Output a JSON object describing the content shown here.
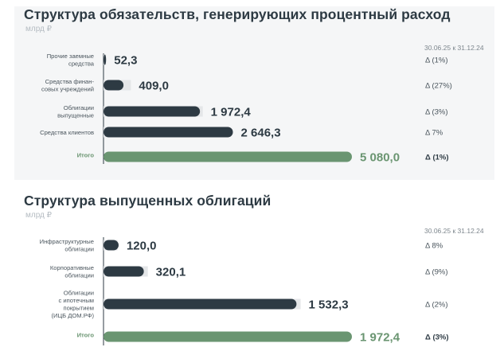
{
  "chart_data": [
    {
      "type": "bar",
      "title": "Структура обязательств, генерирующих процентный расход",
      "unit": "млрд ₽",
      "period_label": "30.06.25 к 31.12.24",
      "categories": [
        [
          "Прочие заемные",
          "средства"
        ],
        [
          "Средства финан-",
          "совых учреждений"
        ],
        [
          "Облигации",
          "выпущенные"
        ],
        [
          "Средства клиентов"
        ]
      ],
      "values": [
        52.3,
        409.0,
        1972.4,
        2646.3
      ],
      "value_labels": [
        "52,3",
        "409,0",
        "1 972,4",
        "2 646,3"
      ],
      "prior_values": [
        53,
        560,
        2030,
        2470
      ],
      "deltas": [
        "Δ (1%)",
        "Δ (27%)",
        "Δ (3%)",
        "Δ 7%"
      ],
      "total": {
        "label": "Итого",
        "value": 5080.0,
        "value_label": "5 080,0",
        "delta": "Δ (1%)"
      },
      "colors": {
        "bar": "#2d3a43",
        "prior": "#e4e6e8",
        "total": "#6a9571"
      }
    },
    {
      "type": "bar",
      "title": "Структура выпущенных облигаций",
      "unit": "млрд ₽",
      "period_label": "30.06.25 к 31.12.24",
      "categories": [
        [
          "Инфраструктурные",
          "облигации"
        ],
        [
          "Корпоративные",
          "облигации"
        ],
        [
          "Облигации",
          "с ипотечным",
          "покрытием",
          "(ИЦБ ДОМ.РФ)"
        ]
      ],
      "values": [
        120.0,
        320.1,
        1532.3
      ],
      "value_labels": [
        "120,0",
        "320,1",
        "1 532,3"
      ],
      "prior_values": [
        111,
        352,
        1565
      ],
      "deltas": [
        "Δ 8%",
        "Δ (9%)",
        "Δ (2%)"
      ],
      "total": {
        "label": "Итого",
        "value": 1972.4,
        "value_label": "1 972,4",
        "delta": "Δ (3%)"
      },
      "colors": {
        "bar": "#2d3a43",
        "prior": "#e4e6e8",
        "total": "#6a9571"
      }
    }
  ]
}
